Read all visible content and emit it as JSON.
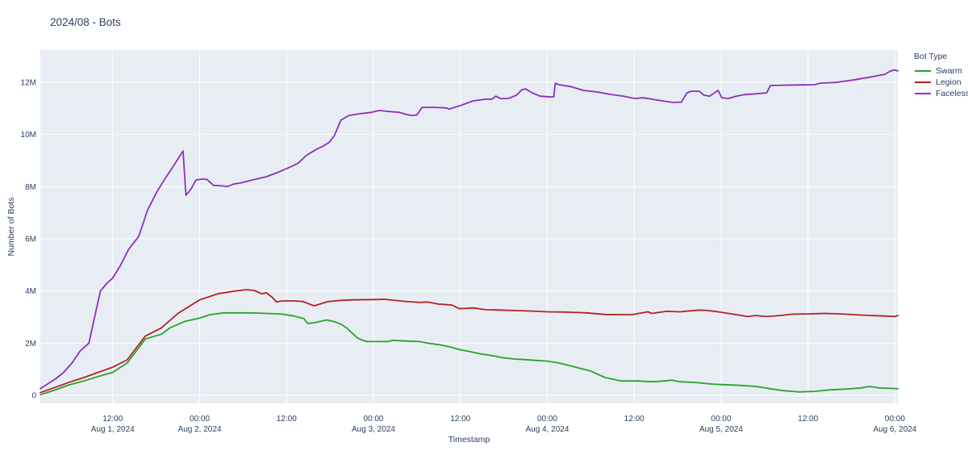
{
  "header": {
    "title": "2024/08 - Bots"
  },
  "colors": {
    "paper": "#ffffff",
    "plot_bg": "#e8edf4",
    "grid": "#ffffff",
    "text": "#2a3f5f",
    "swarm": "#2aa22a",
    "legion": "#b22222",
    "faceless": "#8b2fc0"
  },
  "legend": {
    "title": "Bot Type"
  },
  "chart_data": {
    "type": "line",
    "title": "2024/08 - Bots",
    "xlabel": "Timestamp",
    "ylabel": "Number of Bots",
    "x_unit": "hours since Aug 1, 2024 00:00",
    "y_unit": "millions of bots",
    "xlim": [
      2,
      120.4
    ],
    "ylim": [
      -0.31,
      13.24
    ],
    "grid": true,
    "legend_position": "right",
    "x_ticks": [
      {
        "h": 12,
        "time": "12:00",
        "date": "Aug 1, 2024"
      },
      {
        "h": 24,
        "time": "00:00",
        "date": "Aug 2, 2024"
      },
      {
        "h": 36,
        "time": "12:00",
        "date": ""
      },
      {
        "h": 48,
        "time": "00:00",
        "date": "Aug 3, 2024"
      },
      {
        "h": 60,
        "time": "12:00",
        "date": ""
      },
      {
        "h": 72,
        "time": "00:00",
        "date": "Aug 4, 2024"
      },
      {
        "h": 84,
        "time": "12:00",
        "date": ""
      },
      {
        "h": 96,
        "time": "00:00",
        "date": "Aug 5, 2024"
      },
      {
        "h": 108,
        "time": "12:00",
        "date": ""
      },
      {
        "h": 120,
        "time": "00:00",
        "date": "Aug 6, 2024"
      }
    ],
    "y_ticks": [
      {
        "v": 0,
        "label": "0"
      },
      {
        "v": 2,
        "label": "2M"
      },
      {
        "v": 4,
        "label": "4M"
      },
      {
        "v": 6,
        "label": "6M"
      },
      {
        "v": 8,
        "label": "8M"
      },
      {
        "v": 10,
        "label": "10M"
      },
      {
        "v": 12,
        "label": "12M"
      }
    ],
    "series": [
      {
        "name": "Swarm",
        "color_key": "swarm",
        "points": [
          [
            2,
            0.02
          ],
          [
            4,
            0.2
          ],
          [
            6,
            0.4
          ],
          [
            8,
            0.55
          ],
          [
            10,
            0.72
          ],
          [
            12,
            0.88
          ],
          [
            14,
            1.24
          ],
          [
            16.5,
            2.16
          ],
          [
            18.7,
            2.34
          ],
          [
            20,
            2.6
          ],
          [
            22,
            2.84
          ],
          [
            24,
            2.96
          ],
          [
            25.4,
            3.09
          ],
          [
            27.3,
            3.16
          ],
          [
            29.8,
            3.16
          ],
          [
            31,
            3.16
          ],
          [
            33.2,
            3.14
          ],
          [
            35.4,
            3.11
          ],
          [
            37,
            3.04
          ],
          [
            38.4,
            2.94
          ],
          [
            38.9,
            2.76
          ],
          [
            39.8,
            2.78
          ],
          [
            41.5,
            2.89
          ],
          [
            42.4,
            2.84
          ],
          [
            43.5,
            2.73
          ],
          [
            44.3,
            2.58
          ],
          [
            45.1,
            2.37
          ],
          [
            45.8,
            2.2
          ],
          [
            46.5,
            2.11
          ],
          [
            47.1,
            2.06
          ],
          [
            48,
            2.06
          ],
          [
            49.9,
            2.06
          ],
          [
            50.7,
            2.11
          ],
          [
            52.4,
            2.08
          ],
          [
            54.3,
            2.06
          ],
          [
            55.8,
            1.99
          ],
          [
            57.3,
            1.93
          ],
          [
            58.5,
            1.86
          ],
          [
            59.9,
            1.75
          ],
          [
            61.4,
            1.67
          ],
          [
            62.9,
            1.58
          ],
          [
            64.4,
            1.52
          ],
          [
            65.8,
            1.44
          ],
          [
            67.4,
            1.39
          ],
          [
            68.8,
            1.37
          ],
          [
            70.3,
            1.34
          ],
          [
            72,
            1.31
          ],
          [
            73.6,
            1.24
          ],
          [
            75.2,
            1.13
          ],
          [
            76.6,
            1.03
          ],
          [
            78,
            0.93
          ],
          [
            79.2,
            0.78
          ],
          [
            80,
            0.68
          ],
          [
            82.2,
            0.55
          ],
          [
            84.4,
            0.55
          ],
          [
            86.6,
            0.52
          ],
          [
            88.2,
            0.55
          ],
          [
            89.2,
            0.58
          ],
          [
            90.3,
            0.52
          ],
          [
            92.5,
            0.49
          ],
          [
            94.8,
            0.43
          ],
          [
            96.1,
            0.41
          ],
          [
            98.6,
            0.38
          ],
          [
            100.8,
            0.34
          ],
          [
            103,
            0.24
          ],
          [
            104.5,
            0.18
          ],
          [
            105.9,
            0.15
          ],
          [
            106.7,
            0.13
          ],
          [
            108.9,
            0.15
          ],
          [
            111.1,
            0.21
          ],
          [
            113.4,
            0.24
          ],
          [
            115.3,
            0.28
          ],
          [
            116.5,
            0.34
          ],
          [
            117.8,
            0.28
          ],
          [
            120,
            0.26
          ],
          [
            120.4,
            0.25
          ]
        ]
      },
      {
        "name": "Legion",
        "color_key": "legion",
        "points": [
          [
            2,
            0.1
          ],
          [
            4,
            0.3
          ],
          [
            6,
            0.5
          ],
          [
            8,
            0.68
          ],
          [
            10,
            0.88
          ],
          [
            12,
            1.08
          ],
          [
            14,
            1.36
          ],
          [
            16.5,
            2.27
          ],
          [
            18.7,
            2.58
          ],
          [
            21,
            3.14
          ],
          [
            22.5,
            3.4
          ],
          [
            24,
            3.66
          ],
          [
            26.5,
            3.89
          ],
          [
            28.7,
            3.99
          ],
          [
            30.4,
            4.05
          ],
          [
            31.5,
            4.02
          ],
          [
            32.6,
            3.89
          ],
          [
            33.2,
            3.93
          ],
          [
            34,
            3.76
          ],
          [
            34.6,
            3.58
          ],
          [
            35.4,
            3.62
          ],
          [
            37,
            3.62
          ],
          [
            38.2,
            3.6
          ],
          [
            39.8,
            3.43
          ],
          [
            41.7,
            3.59
          ],
          [
            43.5,
            3.64
          ],
          [
            45,
            3.66
          ],
          [
            48.4,
            3.67
          ],
          [
            49.5,
            3.68
          ],
          [
            52.4,
            3.6
          ],
          [
            54.3,
            3.56
          ],
          [
            55.4,
            3.58
          ],
          [
            56.9,
            3.5
          ],
          [
            58.8,
            3.46
          ],
          [
            59.9,
            3.32
          ],
          [
            61.8,
            3.35
          ],
          [
            63.6,
            3.28
          ],
          [
            65.5,
            3.27
          ],
          [
            67.4,
            3.25
          ],
          [
            69.9,
            3.23
          ],
          [
            72,
            3.2
          ],
          [
            74.7,
            3.19
          ],
          [
            77.4,
            3.16
          ],
          [
            80,
            3.1
          ],
          [
            83.6,
            3.09
          ],
          [
            85.9,
            3.2
          ],
          [
            86.4,
            3.14
          ],
          [
            88.5,
            3.22
          ],
          [
            90.3,
            3.2
          ],
          [
            93,
            3.27
          ],
          [
            94.1,
            3.25
          ],
          [
            95.6,
            3.2
          ],
          [
            97,
            3.14
          ],
          [
            99.7,
            3.02
          ],
          [
            100.8,
            3.06
          ],
          [
            102.3,
            3.02
          ],
          [
            104.1,
            3.06
          ],
          [
            105.9,
            3.11
          ],
          [
            108.1,
            3.12
          ],
          [
            110.4,
            3.14
          ],
          [
            112.6,
            3.12
          ],
          [
            114.5,
            3.09
          ],
          [
            116.7,
            3.06
          ],
          [
            118.6,
            3.04
          ],
          [
            120,
            3.02
          ],
          [
            120.4,
            3.06
          ]
        ]
      },
      {
        "name": "Faceless",
        "color_key": "faceless",
        "points": [
          [
            2,
            0.25
          ],
          [
            3.1,
            0.45
          ],
          [
            4.2,
            0.65
          ],
          [
            5.3,
            0.9
          ],
          [
            6.4,
            1.25
          ],
          [
            7.5,
            1.7
          ],
          [
            8.7,
            2.0
          ],
          [
            9.5,
            3.0
          ],
          [
            10.3,
            4.0
          ],
          [
            11.2,
            4.3
          ],
          [
            12,
            4.5
          ],
          [
            13.1,
            5.0
          ],
          [
            14.2,
            5.6
          ],
          [
            15.6,
            6.1
          ],
          [
            16.8,
            7.1
          ],
          [
            18.1,
            7.8
          ],
          [
            19.2,
            8.3
          ],
          [
            20.4,
            8.8
          ],
          [
            21.7,
            9.37
          ],
          [
            22.1,
            7.67
          ],
          [
            22.8,
            7.9
          ],
          [
            23.5,
            8.26
          ],
          [
            24.3,
            8.29
          ],
          [
            25,
            8.28
          ],
          [
            25.9,
            8.05
          ],
          [
            27,
            8.03
          ],
          [
            27.9,
            8.01
          ],
          [
            28.7,
            8.1
          ],
          [
            29.8,
            8.15
          ],
          [
            31.3,
            8.26
          ],
          [
            33.2,
            8.38
          ],
          [
            34.8,
            8.55
          ],
          [
            36.5,
            8.75
          ],
          [
            37.6,
            8.9
          ],
          [
            38.7,
            9.19
          ],
          [
            40.1,
            9.43
          ],
          [
            41,
            9.55
          ],
          [
            41.9,
            9.7
          ],
          [
            42.6,
            9.96
          ],
          [
            43.5,
            10.55
          ],
          [
            44.6,
            10.73
          ],
          [
            46.2,
            10.8
          ],
          [
            47.7,
            10.85
          ],
          [
            48.8,
            10.92
          ],
          [
            49.9,
            10.89
          ],
          [
            51.6,
            10.85
          ],
          [
            52.4,
            10.78
          ],
          [
            53.2,
            10.73
          ],
          [
            54,
            10.75
          ],
          [
            54.7,
            11.04
          ],
          [
            56.6,
            11.04
          ],
          [
            58,
            11.02
          ],
          [
            58.5,
            10.98
          ],
          [
            59.3,
            11.05
          ],
          [
            60.2,
            11.13
          ],
          [
            61.8,
            11.29
          ],
          [
            63.3,
            11.35
          ],
          [
            64.4,
            11.36
          ],
          [
            64.9,
            11.47
          ],
          [
            65.5,
            11.38
          ],
          [
            66.6,
            11.38
          ],
          [
            67.7,
            11.5
          ],
          [
            68.5,
            11.72
          ],
          [
            69,
            11.75
          ],
          [
            69.9,
            11.6
          ],
          [
            71,
            11.47
          ],
          [
            72.5,
            11.44
          ],
          [
            72.9,
            11.45
          ],
          [
            73.1,
            11.97
          ],
          [
            73.6,
            11.91
          ],
          [
            75.2,
            11.84
          ],
          [
            77,
            11.69
          ],
          [
            78.9,
            11.63
          ],
          [
            80.7,
            11.54
          ],
          [
            82.5,
            11.47
          ],
          [
            84.1,
            11.38
          ],
          [
            85.2,
            11.41
          ],
          [
            86.6,
            11.35
          ],
          [
            88.1,
            11.28
          ],
          [
            89.4,
            11.23
          ],
          [
            90.5,
            11.24
          ],
          [
            91.3,
            11.6
          ],
          [
            91.9,
            11.66
          ],
          [
            93,
            11.66
          ],
          [
            93.6,
            11.51
          ],
          [
            94.4,
            11.47
          ],
          [
            95.6,
            11.69
          ],
          [
            96.1,
            11.41
          ],
          [
            97,
            11.38
          ],
          [
            98.1,
            11.47
          ],
          [
            99.2,
            11.53
          ],
          [
            100.8,
            11.56
          ],
          [
            102.3,
            11.6
          ],
          [
            102.8,
            11.88
          ],
          [
            104.5,
            11.89
          ],
          [
            106.7,
            11.9
          ],
          [
            108.9,
            11.91
          ],
          [
            109.7,
            11.97
          ],
          [
            111.9,
            12.0
          ],
          [
            114.2,
            12.09
          ],
          [
            116.4,
            12.19
          ],
          [
            118.6,
            12.31
          ],
          [
            119.3,
            12.42
          ],
          [
            119.9,
            12.48
          ],
          [
            120.4,
            12.44
          ]
        ]
      }
    ]
  }
}
